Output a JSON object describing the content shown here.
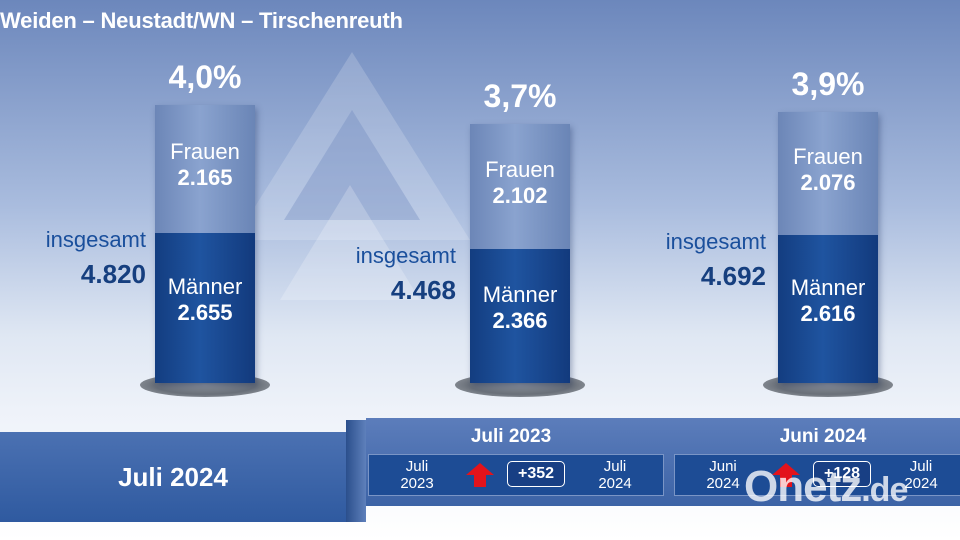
{
  "title": "Weiden – Neustadt/WN – Tirschenreuth",
  "colors": {
    "frauen": "#7f98c8",
    "maenner": "#1a4a94",
    "accent_text": "#1a4f9c",
    "arrow_up": "#e3131b"
  },
  "groups": [
    {
      "pct": "4,0%",
      "total_label": "insgesamt",
      "total": "4.820",
      "frauen_label": "Frauen",
      "frauen": "2.165",
      "maenner_label": "Männer",
      "maenner": "2.655"
    },
    {
      "pct": "3,7%",
      "total_label": "insgesamt",
      "total": "4.468",
      "frauen_label": "Frauen",
      "frauen": "2.102",
      "maenner_label": "Männer",
      "maenner": "2.366"
    },
    {
      "pct": "3,9%",
      "total_label": "insgesamt",
      "total": "4.692",
      "frauen_label": "Frauen",
      "frauen": "2.076",
      "maenner_label": "Männer",
      "maenner": "2.616"
    }
  ],
  "footer": {
    "current": "Juli 2024",
    "comparisons": [
      {
        "heading": "Juli 2023",
        "from": "Juli\n2023",
        "to": "Juli\n2024",
        "change": "+352",
        "arrow_icon": "arrow-up-icon"
      },
      {
        "heading": "Juni 2024",
        "from": "Juni\n2024",
        "to": "Juli\n2024",
        "change": "+128",
        "arrow_icon": "arrow-up-icon"
      }
    ]
  },
  "watermark": {
    "main": "Onetz",
    "suffix": ".de"
  },
  "chart_data": {
    "type": "bar",
    "title": "Weiden – Neustadt/WN – Tirschenreuth",
    "categories": [
      "Juli 2024",
      "Juli 2023",
      "Juni 2024"
    ],
    "series": [
      {
        "name": "Frauen",
        "values": [
          2165,
          2102,
          2076
        ]
      },
      {
        "name": "Männer",
        "values": [
          2655,
          2366,
          2616
        ]
      }
    ],
    "totals": [
      4820,
      4468,
      4692
    ],
    "rates_percent": [
      4.0,
      3.7,
      3.9
    ],
    "stacked": true,
    "grid": false
  }
}
